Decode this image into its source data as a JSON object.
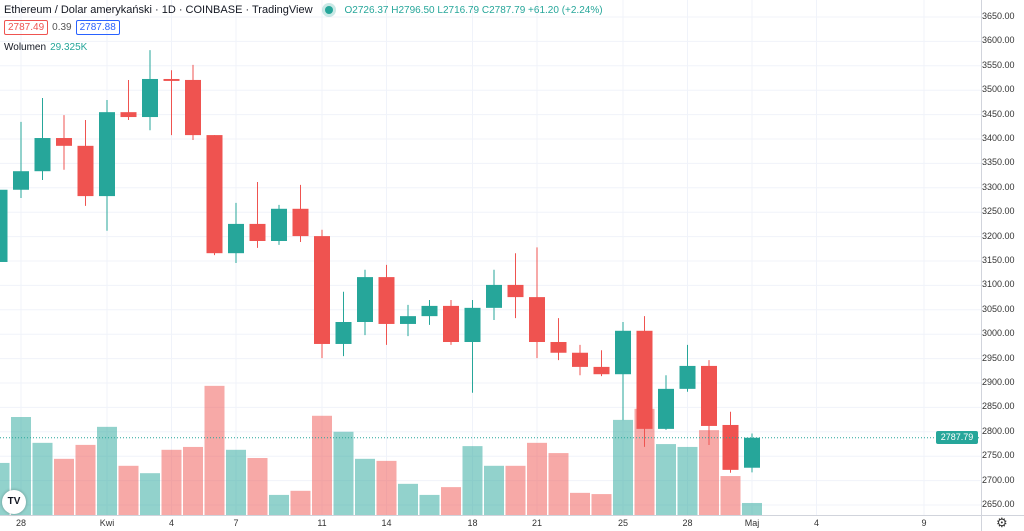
{
  "header": {
    "title": "Ethereum / Dolar amerykański · 1D · COINBASE · TradingView",
    "open": "O2726.37",
    "high": "H2796.50",
    "low": "L2716.79",
    "close": "C2787.79",
    "change": "+61.20 (+2.24%)"
  },
  "quote": {
    "sell": "2787.49",
    "spread": "0.39",
    "buy": "2787.88"
  },
  "volume": {
    "label": "Wolumen",
    "value": "29.325K"
  },
  "current_price": "2787.79",
  "colors": {
    "up": "#26a69a",
    "down": "#ef5350"
  },
  "price_axis": [
    "3650.00",
    "3600.00",
    "3550.00",
    "3500.00",
    "3450.00",
    "3400.00",
    "3350.00",
    "3300.00",
    "3250.00",
    "3200.00",
    "3150.00",
    "3100.00",
    "3050.00",
    "3000.00",
    "2950.00",
    "2900.00",
    "2850.00",
    "2800.00",
    "2750.00",
    "2700.00",
    "2650.00"
  ],
  "time_axis": [
    {
      "label": "28",
      "day": 1
    },
    {
      "label": "Kwi",
      "day": 5
    },
    {
      "label": "4",
      "day": 8
    },
    {
      "label": "7",
      "day": 11
    },
    {
      "label": "11",
      "day": 15
    },
    {
      "label": "14",
      "day": 18
    },
    {
      "label": "18",
      "day": 22
    },
    {
      "label": "21",
      "day": 25
    },
    {
      "label": "25",
      "day": 29
    },
    {
      "label": "28",
      "day": 32
    },
    {
      "label": "Maj",
      "day": 35
    },
    {
      "label": "4",
      "day": 38
    },
    {
      "label": "9",
      "day": 43
    }
  ],
  "logo": "TV",
  "chart_data": {
    "type": "candlestick",
    "price_range": [
      2650,
      3650
    ],
    "candles": [
      [
        3148,
        3132,
        3296,
        3296,
        127
      ],
      [
        3296,
        3279,
        3435,
        3334,
        239
      ],
      [
        3334,
        3316,
        3484,
        3402,
        176
      ],
      [
        3402,
        3337,
        3449,
        3386,
        137
      ],
      [
        3386,
        3263,
        3439,
        3283,
        171
      ],
      [
        3283,
        3212,
        3480,
        3455,
        215
      ],
      [
        3455,
        3439,
        3521,
        3445,
        120
      ],
      [
        3445,
        3418,
        3582,
        3523,
        102
      ],
      [
        3523,
        3408,
        3541,
        3519,
        159
      ],
      [
        3521,
        3398,
        3552,
        3408,
        166
      ],
      [
        3408,
        3162,
        3408,
        3166,
        315
      ],
      [
        3166,
        3146,
        3269,
        3226,
        159
      ],
      [
        3226,
        3177,
        3312,
        3191,
        139
      ],
      [
        3191,
        3183,
        3265,
        3257,
        49
      ],
      [
        3257,
        3189,
        3306,
        3201,
        59
      ],
      [
        3201,
        2951,
        3214,
        2980,
        242
      ],
      [
        2980,
        2955,
        3087,
        3025,
        203
      ],
      [
        3025,
        2998,
        3132,
        3117,
        137
      ],
      [
        3117,
        2978,
        3142,
        3021,
        132
      ],
      [
        3021,
        2996,
        3060,
        3037,
        76
      ],
      [
        3037,
        3019,
        3070,
        3058,
        49
      ],
      [
        3058,
        2978,
        3070,
        2984,
        68
      ],
      [
        2984,
        2880,
        3070,
        3054,
        168
      ],
      [
        3054,
        3029,
        3132,
        3101,
        120
      ],
      [
        3101,
        3033,
        3166,
        3076,
        120
      ],
      [
        3076,
        2951,
        3178,
        2984,
        176
      ],
      [
        2984,
        2947,
        3033,
        2962,
        151
      ],
      [
        2962,
        2916,
        2978,
        2933,
        54
      ],
      [
        2933,
        2914,
        2967,
        2918,
        51
      ],
      [
        2918,
        2824,
        3025,
        3007,
        232
      ],
      [
        3007,
        2769,
        3037,
        2806,
        259
      ],
      [
        2806,
        2804,
        2916,
        2888,
        173
      ],
      [
        2888,
        2882,
        2978,
        2935,
        166
      ],
      [
        2935,
        2773,
        2947,
        2812,
        207
      ],
      [
        2814,
        2716,
        2841,
        2722,
        95
      ],
      [
        2726.37,
        2716.79,
        2796.5,
        2787.79,
        29.325
      ]
    ],
    "candle_format": [
      "open",
      "low",
      "high",
      "close",
      "volume_K"
    ],
    "first_day_label": "27"
  }
}
